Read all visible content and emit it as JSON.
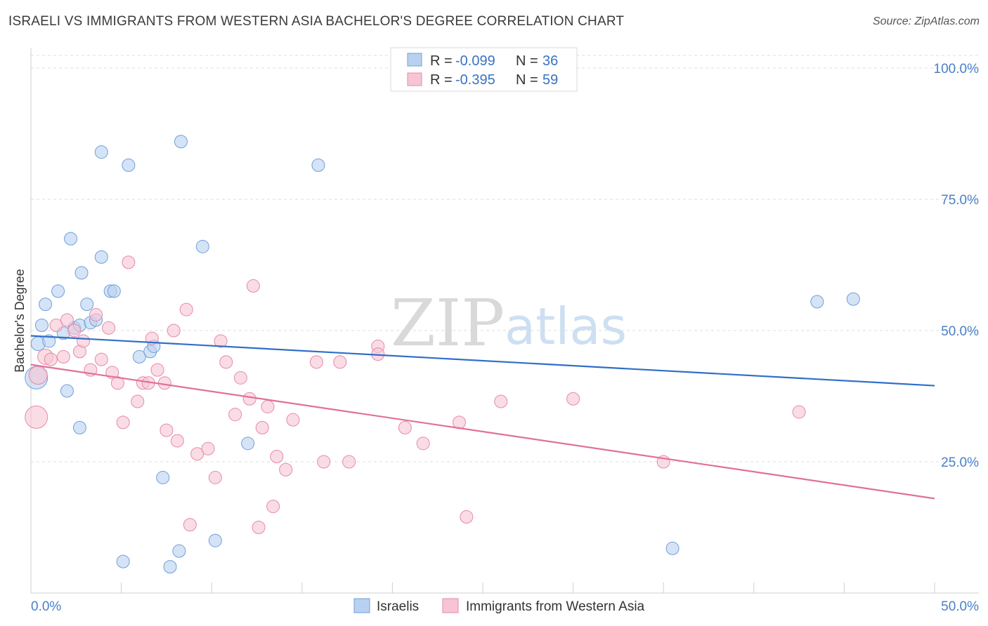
{
  "header": {
    "title": "ISRAELI VS IMMIGRANTS FROM WESTERN ASIA BACHELOR'S DEGREE CORRELATION CHART",
    "source": "Source: ZipAtlas.com"
  },
  "watermark": {
    "zip": "ZIP",
    "atlas": "atlas"
  },
  "colors": {
    "blue": "#6ea0dc",
    "blue_fill": "#b9d1f0",
    "blue_line": "#2f6fc9",
    "pink": "#e68aa8",
    "pink_fill": "#f7c4d4",
    "pink_line": "#e0709a",
    "axis_text": "#4a80c8",
    "grid": "#dcdcdc"
  },
  "legend": {
    "rows": [
      {
        "r_label": "R = ",
        "r_value": "-0.099",
        "n_label": "N = ",
        "n_value": "36"
      },
      {
        "r_label": "R = ",
        "r_value": "-0.395",
        "n_label": "N = ",
        "n_value": "59"
      }
    ]
  },
  "bottom_legend": {
    "items": [
      "Israelis",
      "Immigrants from Western Asia"
    ]
  },
  "chart_data": {
    "type": "scatter",
    "title": "ISRAELI VS IMMIGRANTS FROM WESTERN ASIA BACHELOR'S DEGREE CORRELATION CHART",
    "xlabel": "",
    "ylabel": "Bachelor's Degree",
    "xlim": [
      0,
      50
    ],
    "ylim": [
      0,
      105
    ],
    "x_tick_labels": [
      "0.0%",
      "50.0%"
    ],
    "y_ticks": [
      25,
      50,
      75,
      100
    ],
    "y_tick_labels": [
      "25.0%",
      "50.0%",
      "75.0%",
      "100.0%"
    ],
    "grid": true,
    "series": [
      {
        "name": "Israelis",
        "color": "#6ea0dc",
        "trend": {
          "x": [
            0,
            50
          ],
          "y": [
            49.0,
            39.5
          ]
        },
        "points": [
          {
            "x": 0.3,
            "y": 41.0,
            "s": 16
          },
          {
            "x": 0.4,
            "y": 47.5,
            "s": 10
          },
          {
            "x": 0.8,
            "y": 55.0,
            "s": 9
          },
          {
            "x": 0.6,
            "y": 51.0,
            "s": 9
          },
          {
            "x": 1.0,
            "y": 48.0,
            "s": 9
          },
          {
            "x": 1.5,
            "y": 57.5,
            "s": 9
          },
          {
            "x": 1.8,
            "y": 49.5,
            "s": 9
          },
          {
            "x": 2.0,
            "y": 38.5,
            "s": 9
          },
          {
            "x": 2.2,
            "y": 67.5,
            "s": 9
          },
          {
            "x": 2.4,
            "y": 50.5,
            "s": 9
          },
          {
            "x": 2.7,
            "y": 51.0,
            "s": 9
          },
          {
            "x": 2.7,
            "y": 31.5,
            "s": 9
          },
          {
            "x": 2.8,
            "y": 61.0,
            "s": 9
          },
          {
            "x": 3.1,
            "y": 55.0,
            "s": 9
          },
          {
            "x": 3.3,
            "y": 51.5,
            "s": 9
          },
          {
            "x": 3.6,
            "y": 52.0,
            "s": 9
          },
          {
            "x": 3.9,
            "y": 84.0,
            "s": 9
          },
          {
            "x": 3.9,
            "y": 64.0,
            "s": 9
          },
          {
            "x": 4.4,
            "y": 57.5,
            "s": 9
          },
          {
            "x": 4.6,
            "y": 57.5,
            "s": 9
          },
          {
            "x": 5.4,
            "y": 81.5,
            "s": 9
          },
          {
            "x": 6.0,
            "y": 45.0,
            "s": 9
          },
          {
            "x": 6.6,
            "y": 46.0,
            "s": 9
          },
          {
            "x": 6.8,
            "y": 47.0,
            "s": 9
          },
          {
            "x": 7.3,
            "y": 22.0,
            "s": 9
          },
          {
            "x": 8.3,
            "y": 86.0,
            "s": 9
          },
          {
            "x": 9.5,
            "y": 66.0,
            "s": 9
          },
          {
            "x": 8.2,
            "y": 8.0,
            "s": 9
          },
          {
            "x": 7.7,
            "y": 5.0,
            "s": 9
          },
          {
            "x": 5.1,
            "y": 6.0,
            "s": 9
          },
          {
            "x": 10.2,
            "y": 10.0,
            "s": 9
          },
          {
            "x": 12.0,
            "y": 28.5,
            "s": 9
          },
          {
            "x": 15.9,
            "y": 81.5,
            "s": 9
          },
          {
            "x": 35.5,
            "y": 8.5,
            "s": 9
          },
          {
            "x": 43.5,
            "y": 55.5,
            "s": 9
          },
          {
            "x": 45.5,
            "y": 56.0,
            "s": 9
          }
        ]
      },
      {
        "name": "Immigrants from Western Asia",
        "color": "#e68aa8",
        "trend": {
          "x": [
            0,
            50
          ],
          "y": [
            43.5,
            18.0
          ]
        },
        "points": [
          {
            "x": 0.3,
            "y": 33.5,
            "s": 16
          },
          {
            "x": 0.4,
            "y": 41.5,
            "s": 13
          },
          {
            "x": 0.8,
            "y": 45.0,
            "s": 11
          },
          {
            "x": 1.1,
            "y": 44.5,
            "s": 9
          },
          {
            "x": 1.4,
            "y": 51.0,
            "s": 9
          },
          {
            "x": 1.8,
            "y": 45.0,
            "s": 9
          },
          {
            "x": 2.0,
            "y": 52.0,
            "s": 9
          },
          {
            "x": 2.4,
            "y": 50.0,
            "s": 9
          },
          {
            "x": 2.7,
            "y": 46.0,
            "s": 9
          },
          {
            "x": 2.9,
            "y": 48.0,
            "s": 9
          },
          {
            "x": 3.3,
            "y": 42.5,
            "s": 9
          },
          {
            "x": 3.6,
            "y": 53.0,
            "s": 9
          },
          {
            "x": 3.9,
            "y": 44.5,
            "s": 9
          },
          {
            "x": 4.3,
            "y": 50.5,
            "s": 9
          },
          {
            "x": 4.5,
            "y": 42.0,
            "s": 9
          },
          {
            "x": 4.8,
            "y": 40.0,
            "s": 9
          },
          {
            "x": 5.1,
            "y": 32.5,
            "s": 9
          },
          {
            "x": 5.4,
            "y": 63.0,
            "s": 9
          },
          {
            "x": 5.9,
            "y": 36.5,
            "s": 9
          },
          {
            "x": 6.2,
            "y": 40.0,
            "s": 9
          },
          {
            "x": 6.5,
            "y": 40.0,
            "s": 9
          },
          {
            "x": 6.7,
            "y": 48.5,
            "s": 9
          },
          {
            "x": 7.0,
            "y": 42.5,
            "s": 9
          },
          {
            "x": 7.4,
            "y": 40.0,
            "s": 9
          },
          {
            "x": 7.5,
            "y": 31.0,
            "s": 9
          },
          {
            "x": 7.9,
            "y": 50.0,
            "s": 9
          },
          {
            "x": 8.1,
            "y": 29.0,
            "s": 9
          },
          {
            "x": 8.6,
            "y": 54.0,
            "s": 9
          },
          {
            "x": 8.8,
            "y": 13.0,
            "s": 9
          },
          {
            "x": 9.2,
            "y": 26.5,
            "s": 9
          },
          {
            "x": 9.8,
            "y": 27.5,
            "s": 9
          },
          {
            "x": 10.2,
            "y": 22.0,
            "s": 9
          },
          {
            "x": 10.5,
            "y": 48.0,
            "s": 9
          },
          {
            "x": 10.8,
            "y": 44.0,
            "s": 9
          },
          {
            "x": 11.3,
            "y": 34.0,
            "s": 9
          },
          {
            "x": 11.6,
            "y": 41.0,
            "s": 9
          },
          {
            "x": 12.1,
            "y": 37.0,
            "s": 9
          },
          {
            "x": 12.3,
            "y": 58.5,
            "s": 9
          },
          {
            "x": 12.6,
            "y": 12.5,
            "s": 9
          },
          {
            "x": 12.8,
            "y": 31.5,
            "s": 9
          },
          {
            "x": 13.1,
            "y": 35.5,
            "s": 9
          },
          {
            "x": 13.4,
            "y": 16.5,
            "s": 9
          },
          {
            "x": 13.6,
            "y": 26.0,
            "s": 9
          },
          {
            "x": 14.1,
            "y": 23.5,
            "s": 9
          },
          {
            "x": 14.5,
            "y": 33.0,
            "s": 9
          },
          {
            "x": 15.8,
            "y": 44.0,
            "s": 9
          },
          {
            "x": 16.2,
            "y": 25.0,
            "s": 9
          },
          {
            "x": 17.1,
            "y": 44.0,
            "s": 9
          },
          {
            "x": 17.6,
            "y": 25.0,
            "s": 9
          },
          {
            "x": 19.2,
            "y": 47.0,
            "s": 9
          },
          {
            "x": 19.2,
            "y": 45.5,
            "s": 9
          },
          {
            "x": 20.7,
            "y": 31.5,
            "s": 9
          },
          {
            "x": 21.7,
            "y": 28.5,
            "s": 9
          },
          {
            "x": 23.7,
            "y": 32.5,
            "s": 9
          },
          {
            "x": 24.1,
            "y": 14.5,
            "s": 9
          },
          {
            "x": 26.0,
            "y": 36.5,
            "s": 9
          },
          {
            "x": 30.0,
            "y": 37.0,
            "s": 9
          },
          {
            "x": 35.0,
            "y": 25.0,
            "s": 9
          },
          {
            "x": 42.5,
            "y": 34.5,
            "s": 9
          }
        ]
      }
    ]
  }
}
